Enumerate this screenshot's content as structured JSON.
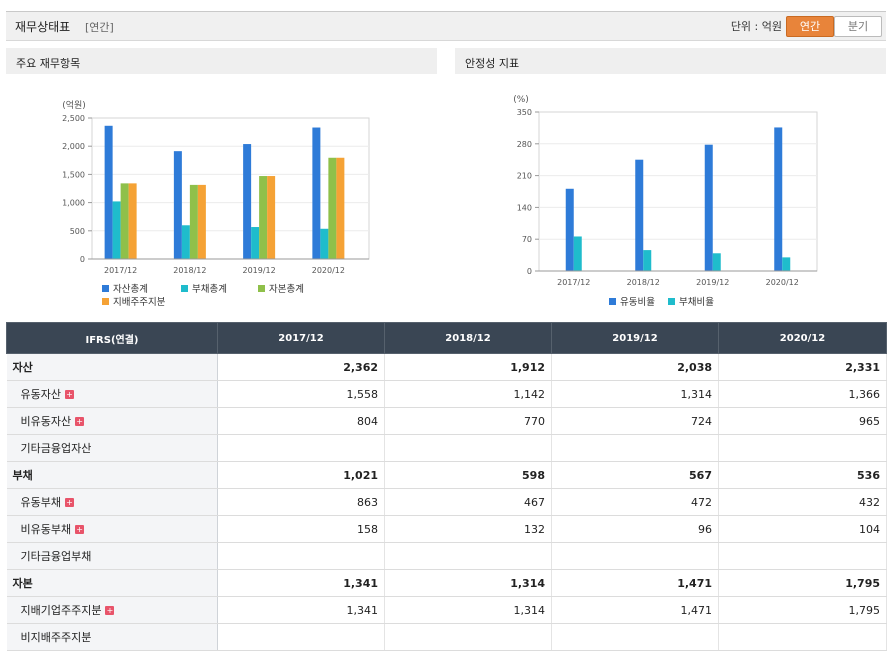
{
  "header": {
    "title": "재무상태표",
    "period_tag": "[연간]",
    "unit": "단위 : 억원",
    "tab_annual": "연간",
    "tab_quarter": "분기"
  },
  "panels": {
    "left_title": "주요 재무항목",
    "right_title": "안정성 지표"
  },
  "chart_data": [
    {
      "type": "bar",
      "ylabel": "(억원)",
      "ylim": [
        0,
        2500
      ],
      "yticks": [
        "0",
        "500",
        "1,000",
        "1,500",
        "2,000",
        "2,500"
      ],
      "categories": [
        "2017/12",
        "2018/12",
        "2019/12",
        "2020/12"
      ],
      "grid": true,
      "legend_position": "bottom",
      "series": [
        {
          "name": "자산총계",
          "color": "#2e7bd8",
          "values": [
            2362,
            1912,
            2038,
            2331
          ]
        },
        {
          "name": "부채총계",
          "color": "#1fbccc",
          "values": [
            1021,
            598,
            567,
            536
          ]
        },
        {
          "name": "자본총계",
          "color": "#8fc04a",
          "values": [
            1341,
            1314,
            1471,
            1795
          ]
        },
        {
          "name": "지배주주지분",
          "color": "#f5a235",
          "values": [
            1341,
            1314,
            1471,
            1795
          ]
        }
      ]
    },
    {
      "type": "bar",
      "ylabel": "(%)",
      "ylim": [
        0,
        350
      ],
      "yticks": [
        "0",
        "70",
        "140",
        "210",
        "280",
        "350"
      ],
      "categories": [
        "2017/12",
        "2018/12",
        "2019/12",
        "2020/12"
      ],
      "grid": true,
      "legend_position": "bottom",
      "series": [
        {
          "name": "유동비율",
          "color": "#2e7bd8",
          "values": [
            181,
            245,
            278,
            316
          ]
        },
        {
          "name": "부채비율",
          "color": "#1fbccc",
          "values": [
            76,
            46,
            39,
            30
          ]
        }
      ]
    }
  ],
  "table": {
    "corner": "IFRS(연결)",
    "columns": [
      "2017/12",
      "2018/12",
      "2019/12",
      "2020/12"
    ],
    "rows": [
      {
        "label": "자산",
        "level": 0,
        "expand": false,
        "values": [
          "2,362",
          "1,912",
          "2,038",
          "2,331"
        ]
      },
      {
        "label": "유동자산",
        "level": 1,
        "expand": true,
        "values": [
          "1,558",
          "1,142",
          "1,314",
          "1,366"
        ]
      },
      {
        "label": "비유동자산",
        "level": 1,
        "expand": true,
        "values": [
          "804",
          "770",
          "724",
          "965"
        ]
      },
      {
        "label": "기타금융업자산",
        "level": 1,
        "expand": false,
        "values": [
          "",
          "",
          "",
          ""
        ]
      },
      {
        "label": "부채",
        "level": 0,
        "expand": false,
        "values": [
          "1,021",
          "598",
          "567",
          "536"
        ]
      },
      {
        "label": "유동부채",
        "level": 1,
        "expand": true,
        "values": [
          "863",
          "467",
          "472",
          "432"
        ]
      },
      {
        "label": "비유동부채",
        "level": 1,
        "expand": true,
        "values": [
          "158",
          "132",
          "96",
          "104"
        ]
      },
      {
        "label": "기타금융업부채",
        "level": 1,
        "expand": false,
        "values": [
          "",
          "",
          "",
          ""
        ]
      },
      {
        "label": "자본",
        "level": 0,
        "expand": false,
        "values": [
          "1,341",
          "1,314",
          "1,471",
          "1,795"
        ]
      },
      {
        "label": "지배기업주주지분",
        "level": 1,
        "expand": true,
        "values": [
          "1,341",
          "1,314",
          "1,471",
          "1,795"
        ]
      },
      {
        "label": "비지배주주지분",
        "level": 1,
        "expand": false,
        "values": [
          "",
          "",
          "",
          ""
        ]
      }
    ]
  }
}
